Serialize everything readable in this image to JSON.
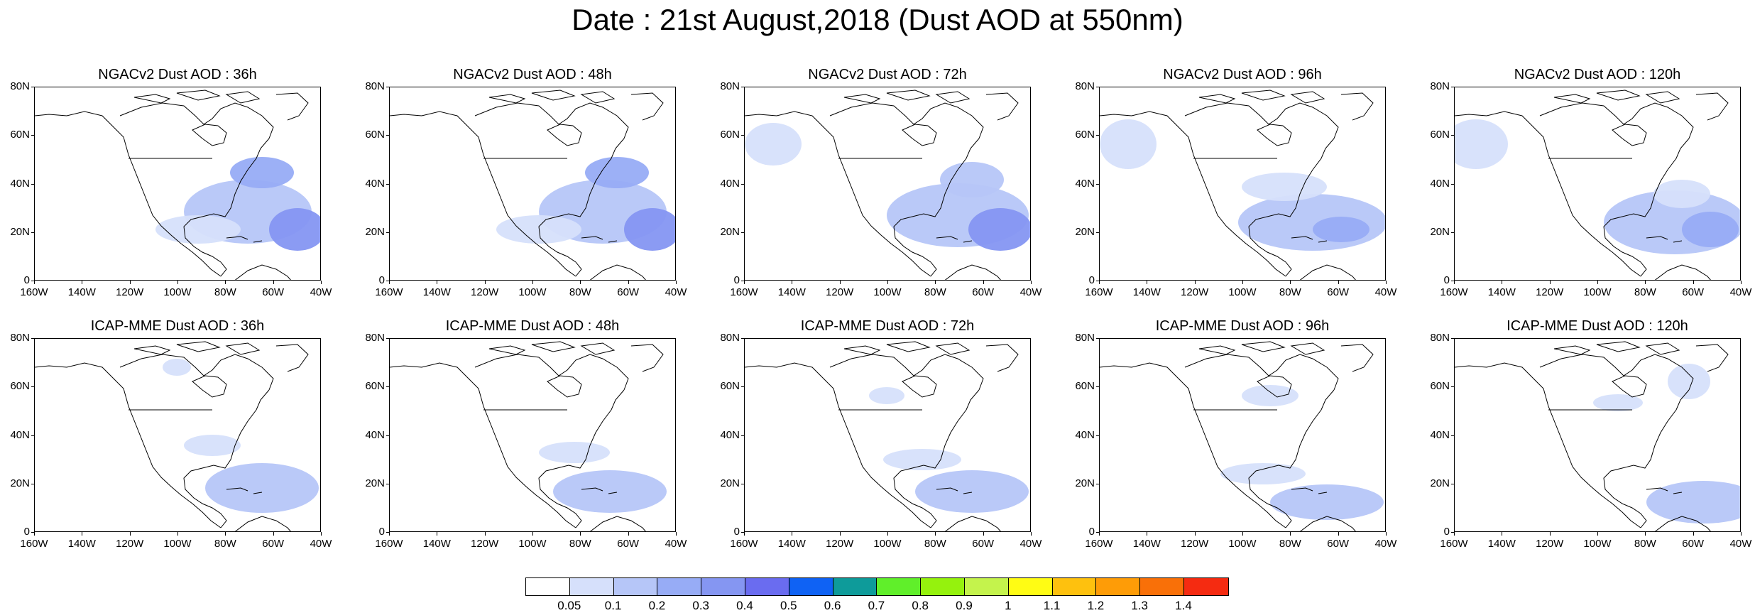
{
  "title": "Date : 21st August,2018 (Dust AOD at 550nm)",
  "lat_labels": [
    "0",
    "20N",
    "40N",
    "60N",
    "80N"
  ],
  "lon_labels": [
    "160W",
    "140W",
    "120W",
    "100W",
    "80W",
    "60W",
    "40W"
  ],
  "panels": [
    {
      "id": "ngac-36h",
      "title": "NGACv2 Dust AOD : 36h"
    },
    {
      "id": "ngac-48h",
      "title": "NGACv2 Dust AOD : 48h"
    },
    {
      "id": "ngac-72h",
      "title": "NGACv2 Dust AOD : 72h"
    },
    {
      "id": "ngac-96h",
      "title": "NGACv2 Dust AOD : 96h"
    },
    {
      "id": "ngac-120h",
      "title": "NGACv2 Dust AOD : 120h"
    },
    {
      "id": "icap-36h",
      "title": "ICAP-MME Dust AOD : 36h"
    },
    {
      "id": "icap-48h",
      "title": "ICAP-MME Dust AOD : 48h"
    },
    {
      "id": "icap-72h",
      "title": "ICAP-MME Dust AOD : 72h"
    },
    {
      "id": "icap-96h",
      "title": "ICAP-MME Dust AOD : 96h"
    },
    {
      "id": "icap-120h",
      "title": "ICAP-MME Dust AOD : 120h"
    }
  ],
  "colorbar": {
    "labels": [
      "0.05",
      "0.1",
      "0.2",
      "0.3",
      "0.4",
      "0.5",
      "0.6",
      "0.7",
      "0.8",
      "0.9",
      "1",
      "1.1",
      "1.2",
      "1.3",
      "1.4"
    ],
    "colors": [
      "#ffffff",
      "#d6e0fb",
      "#b6c6f8",
      "#97acf6",
      "#8596f2",
      "#6a6cf0",
      "#0f62f4",
      "#0e9b9a",
      "#60ef2a",
      "#95f20d",
      "#c4f34c",
      "#fffc14",
      "#fec10e",
      "#fe9c07",
      "#f97008",
      "#f52b11"
    ]
  }
}
